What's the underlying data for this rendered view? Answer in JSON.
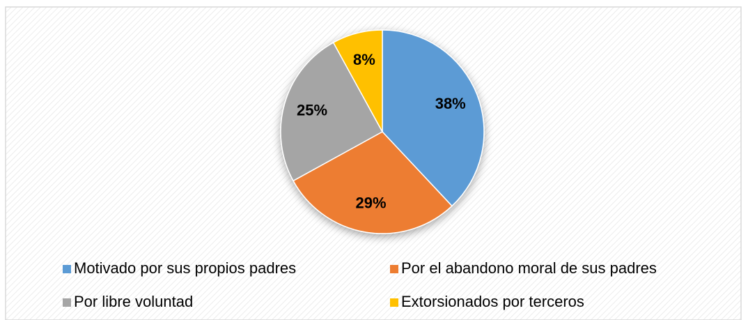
{
  "chart_data": {
    "type": "pie",
    "categories": [
      "Motivado por sus propios padres",
      "Por el abandono moral de sus padres",
      "Por libre voluntad",
      "Extorsionados por terceros"
    ],
    "values": [
      38,
      29,
      25,
      8
    ],
    "value_labels": [
      "38%",
      "29%",
      "25%",
      "8%"
    ],
    "colors": [
      "#5b9bd5",
      "#ed7d31",
      "#a5a5a5",
      "#ffc000"
    ],
    "legend": "bottom"
  }
}
